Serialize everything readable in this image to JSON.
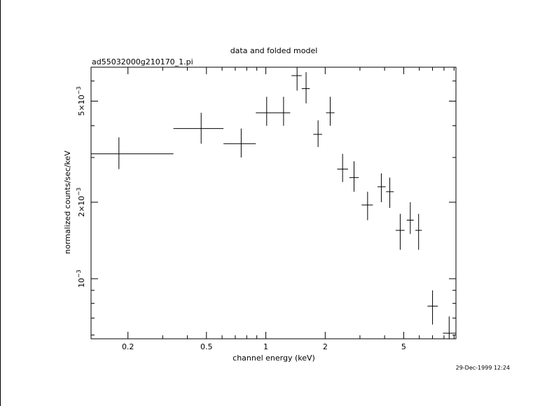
{
  "chart_data": {
    "type": "scatter",
    "title": "data and folded model",
    "subtitle": "ad55032000g210170_1.pi",
    "xlabel": "channel energy (keV)",
    "ylabel": "normalized counts/sec/keV",
    "footer": "29-Dec-1999 12:24",
    "x_scale": "log",
    "y_scale": "log",
    "xlim": [
      0.13,
      9.2
    ],
    "ylim": [
      0.00058,
      0.0068
    ],
    "x_ticks": [
      {
        "value": 0.2,
        "label": "0.2"
      },
      {
        "value": 0.5,
        "label": "0.5"
      },
      {
        "value": 1,
        "label": "1"
      },
      {
        "value": 2,
        "label": "2"
      },
      {
        "value": 5,
        "label": "5"
      }
    ],
    "y_ticks": [
      {
        "value": 0.001,
        "label": "10",
        "exp": "−3"
      },
      {
        "value": 0.002,
        "label": "2×10",
        "exp": "−3"
      },
      {
        "value": 0.005,
        "label": "5×10",
        "exp": "−3"
      }
    ],
    "points": [
      {
        "x": 0.18,
        "xlo": 0.13,
        "xhi": 0.34,
        "y": 0.0031,
        "ylo": 0.0027,
        "yhi": 0.0036
      },
      {
        "x": 0.47,
        "xlo": 0.34,
        "xhi": 0.61,
        "y": 0.0039,
        "ylo": 0.0034,
        "yhi": 0.0045
      },
      {
        "x": 0.75,
        "xlo": 0.61,
        "xhi": 0.89,
        "y": 0.0034,
        "ylo": 0.003,
        "yhi": 0.0039
      },
      {
        "x": 1.01,
        "xlo": 0.89,
        "xhi": 1.12,
        "y": 0.0045,
        "ylo": 0.004,
        "yhi": 0.0052
      },
      {
        "x": 1.23,
        "xlo": 1.12,
        "xhi": 1.33,
        "y": 0.0045,
        "ylo": 0.004,
        "yhi": 0.0052
      },
      {
        "x": 1.44,
        "xlo": 1.35,
        "xhi": 1.52,
        "y": 0.0063,
        "ylo": 0.0055,
        "yhi": 0.0069
      },
      {
        "x": 1.6,
        "xlo": 1.52,
        "xhi": 1.67,
        "y": 0.0056,
        "ylo": 0.0049,
        "yhi": 0.0065
      },
      {
        "x": 1.84,
        "xlo": 1.74,
        "xhi": 1.93,
        "y": 0.0037,
        "ylo": 0.0033,
        "yhi": 0.0042
      },
      {
        "x": 2.12,
        "xlo": 2.02,
        "xhi": 2.23,
        "y": 0.0045,
        "ylo": 0.004,
        "yhi": 0.0052
      },
      {
        "x": 2.45,
        "xlo": 2.3,
        "xhi": 2.61,
        "y": 0.0027,
        "ylo": 0.0024,
        "yhi": 0.0031
      },
      {
        "x": 2.8,
        "xlo": 2.65,
        "xhi": 2.96,
        "y": 0.0025,
        "ylo": 0.0022,
        "yhi": 0.0029
      },
      {
        "x": 3.28,
        "xlo": 3.06,
        "xhi": 3.49,
        "y": 0.00195,
        "ylo": 0.0017,
        "yhi": 0.0022
      },
      {
        "x": 3.85,
        "xlo": 3.68,
        "xhi": 4.05,
        "y": 0.0023,
        "ylo": 0.002,
        "yhi": 0.0026
      },
      {
        "x": 4.25,
        "xlo": 4.07,
        "xhi": 4.45,
        "y": 0.0022,
        "ylo": 0.0019,
        "yhi": 0.0025
      },
      {
        "x": 4.8,
        "xlo": 4.55,
        "xhi": 5.05,
        "y": 0.00155,
        "ylo": 0.0013,
        "yhi": 0.0018
      },
      {
        "x": 5.4,
        "xlo": 5.18,
        "xhi": 5.62,
        "y": 0.0017,
        "ylo": 0.0015,
        "yhi": 0.002
      },
      {
        "x": 5.95,
        "xlo": 5.73,
        "xhi": 6.18,
        "y": 0.00155,
        "ylo": 0.0013,
        "yhi": 0.0018
      },
      {
        "x": 7.0,
        "xlo": 6.6,
        "xhi": 7.45,
        "y": 0.00078,
        "ylo": 0.00066,
        "yhi": 0.0009
      },
      {
        "x": 8.5,
        "xlo": 7.9,
        "xhi": 9.2,
        "y": 0.00061,
        "ylo": 0.00052,
        "yhi": 0.00071
      }
    ]
  }
}
